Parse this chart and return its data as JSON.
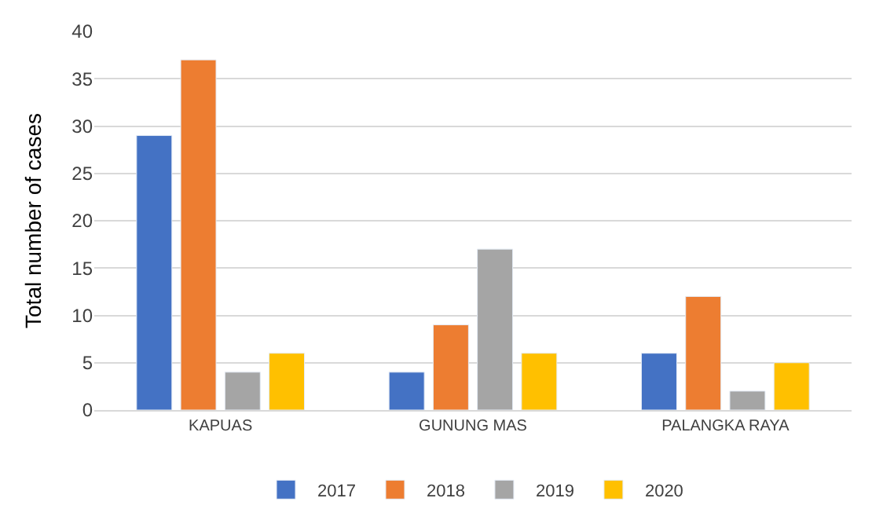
{
  "chart_data": {
    "type": "bar",
    "ylabel": "Total number of cases",
    "categories": [
      "KAPUAS",
      "GUNUNG MAS",
      "PALANGKA RAYA"
    ],
    "series": [
      {
        "name": "2017",
        "color": "#4472c4",
        "values": [
          29,
          4,
          6
        ]
      },
      {
        "name": "2018",
        "color": "#ed7d31",
        "values": [
          37,
          9,
          12
        ]
      },
      {
        "name": "2019",
        "color": "#a5a5a5",
        "values": [
          4,
          17,
          2
        ]
      },
      {
        "name": "2020",
        "color": "#ffc000",
        "values": [
          6,
          6,
          5
        ]
      }
    ],
    "ylim": [
      0,
      40
    ],
    "yticks": [
      0,
      5,
      10,
      15,
      20,
      25,
      30,
      35,
      40
    ],
    "grid": "y",
    "legend": "bottom"
  }
}
